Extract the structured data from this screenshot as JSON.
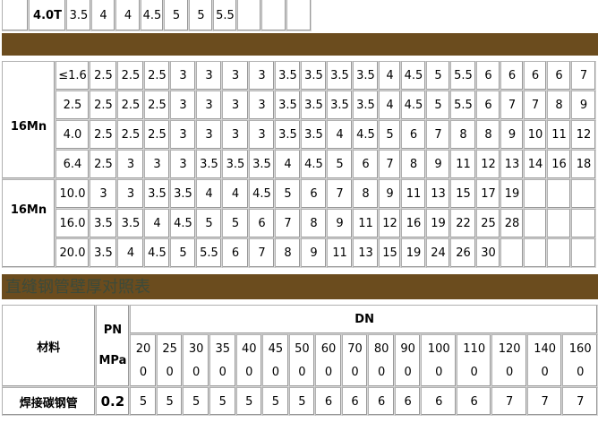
{
  "top_table": {
    "label": "4.0T",
    "values": [
      "3.5",
      "4",
      "4",
      "4.5",
      "5",
      "5",
      "5.5",
      "",
      "",
      ""
    ]
  },
  "middle_table": {
    "material_labels": [
      "16Mn",
      "16Mn"
    ],
    "rows": [
      {
        "pn": "≤1.6",
        "values": [
          "2.5",
          "2.5",
          "2.5",
          "3",
          "3",
          "3",
          "3",
          "3.5",
          "3.5",
          "3.5",
          "3.5",
          "4",
          "4.5",
          "5",
          "5.5",
          "6",
          "6",
          "6",
          "6",
          "7"
        ]
      },
      {
        "pn": "2.5",
        "values": [
          "2.5",
          "2.5",
          "2.5",
          "3",
          "3",
          "3",
          "3",
          "3.5",
          "3.5",
          "3.5",
          "3.5",
          "4",
          "4.5",
          "5",
          "5.5",
          "6",
          "7",
          "7",
          "8",
          "9"
        ]
      },
      {
        "pn": "4.0",
        "values": [
          "2.5",
          "2.5",
          "2.5",
          "3",
          "3",
          "3",
          "3",
          "3.5",
          "3.5",
          "4",
          "4.5",
          "5",
          "6",
          "7",
          "8",
          "8",
          "9",
          "10",
          "11",
          "12"
        ]
      },
      {
        "pn": "6.4",
        "values": [
          "2.5",
          "3",
          "3",
          "3",
          "3.5",
          "3.5",
          "3.5",
          "4",
          "4.5",
          "5",
          "6",
          "7",
          "8",
          "9",
          "11",
          "12",
          "13",
          "14",
          "16",
          "18"
        ]
      },
      {
        "pn": "10.0",
        "values": [
          "3",
          "3",
          "3.5",
          "3.5",
          "4",
          "4",
          "4.5",
          "5",
          "6",
          "7",
          "8",
          "9",
          "11",
          "13",
          "15",
          "17",
          "19",
          "",
          "",
          ""
        ]
      },
      {
        "pn": "16.0",
        "values": [
          "3.5",
          "3.5",
          "4",
          "4.5",
          "5",
          "5",
          "6",
          "7",
          "8",
          "9",
          "11",
          "12",
          "16",
          "19",
          "22",
          "25",
          "28",
          "",
          "",
          ""
        ]
      },
      {
        "pn": "20.0",
        "values": [
          "3.5",
          "4",
          "4.5",
          "5",
          "5.5",
          "6",
          "7",
          "8",
          "9",
          "11",
          "13",
          "15",
          "19",
          "24",
          "26",
          "30",
          "",
          "",
          "",
          ""
        ]
      }
    ]
  },
  "section_title": "直缝钢管壁厚对照表",
  "bottom_table": {
    "material_header": "材料",
    "pn_header": [
      "PN",
      "MPa"
    ],
    "dn_header": "DN",
    "dn_values": [
      [
        "20",
        "0"
      ],
      [
        "25",
        "0"
      ],
      [
        "30",
        "0"
      ],
      [
        "35",
        "0"
      ],
      [
        "40",
        "0"
      ],
      [
        "45",
        "0"
      ],
      [
        "50",
        "0"
      ],
      [
        "60",
        "0"
      ],
      [
        "70",
        "0"
      ],
      [
        "80",
        "0"
      ],
      [
        "90",
        "0"
      ],
      [
        "100",
        "0"
      ],
      [
        "110",
        "0"
      ],
      [
        "120",
        "0"
      ],
      [
        "140",
        "0"
      ],
      [
        "160",
        "0"
      ]
    ],
    "row": {
      "material": "焊接碳钢管",
      "pn": "0.2",
      "values": [
        "5",
        "5",
        "5",
        "5",
        "5",
        "5",
        "5",
        "6",
        "6",
        "6",
        "6",
        "6",
        "6",
        "7",
        "7",
        "7"
      ]
    }
  },
  "colors": {
    "bar": "#6b4c1e",
    "title_text": "#3c4a3a",
    "border": "#b0b0b0"
  }
}
